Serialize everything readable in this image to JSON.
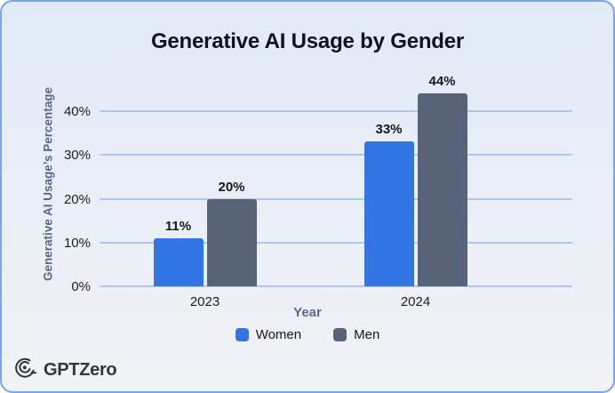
{
  "card": {
    "background_top": "#e2eaf8",
    "background_bottom": "#f1f2f6",
    "border_color": "#79a4f0"
  },
  "chart_data": {
    "type": "bar",
    "title": "Generative AI Usage by Gender",
    "categories": [
      "2023",
      "2024"
    ],
    "series": [
      {
        "name": "Women",
        "color": "#3375e6",
        "values": [
          11,
          33
        ],
        "labels": [
          "11%",
          "33%"
        ]
      },
      {
        "name": "Men",
        "color": "#586278",
        "values": [
          20,
          44
        ],
        "labels": [
          "20%",
          "44%"
        ]
      }
    ],
    "xlabel": "Year",
    "ylabel": "Generative AI Usage’s Percentage",
    "yticks": [
      {
        "label": "0%",
        "value": 0
      },
      {
        "label": "10%",
        "value": 10
      },
      {
        "label": "20%",
        "value": 20
      },
      {
        "label": "30%",
        "value": 30
      },
      {
        "label": "40%",
        "value": 40
      }
    ],
    "ylim": [
      0,
      46.7
    ],
    "grid": true,
    "legend_position": "bottom"
  },
  "branding": {
    "logo_text": "GPTZero"
  },
  "colors": {
    "title": "#0d131f",
    "axis_label": "#56678f",
    "tick_label": "#1a1d24",
    "gridline": "#aec7f1",
    "women_bar": "#3375e6",
    "men_bar": "#586278"
  }
}
